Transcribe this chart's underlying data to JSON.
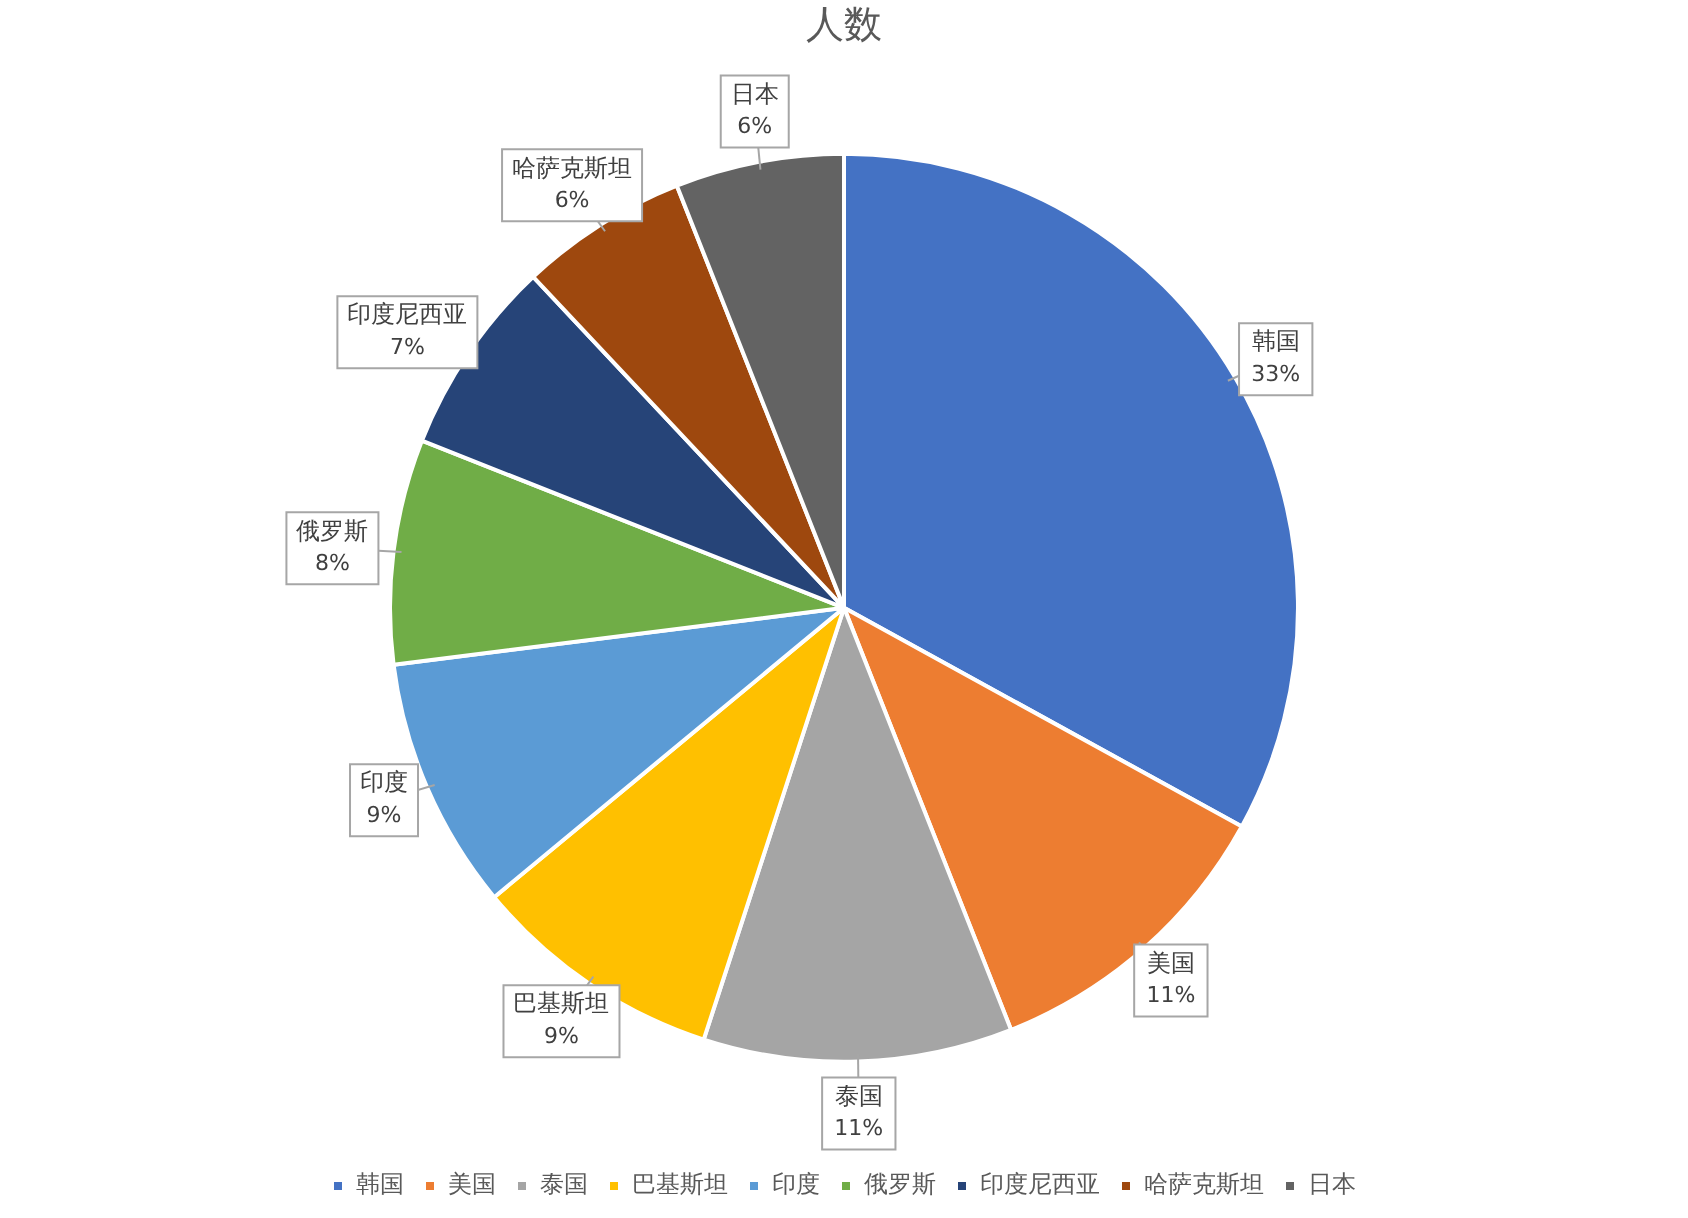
{
  "chart_data": {
    "type": "pie",
    "title": "人数",
    "categories": [
      "韩国",
      "美国",
      "泰国",
      "巴基斯坦",
      "印度",
      "俄罗斯",
      "印度尼西亚",
      "哈萨克斯坦",
      "日本"
    ],
    "values": [
      33,
      11,
      11,
      9,
      9,
      8,
      7,
      6,
      6
    ],
    "value_labels": [
      "33%",
      "11%",
      "11%",
      "9%",
      "9%",
      "8%",
      "7%",
      "6%",
      "6%"
    ],
    "colors": [
      "#4472c4",
      "#ed7d31",
      "#a5a5a5",
      "#ffc000",
      "#5b9bd5",
      "#70ad47",
      "#264478",
      "#9e480e",
      "#636363"
    ],
    "legend": "bottom"
  }
}
